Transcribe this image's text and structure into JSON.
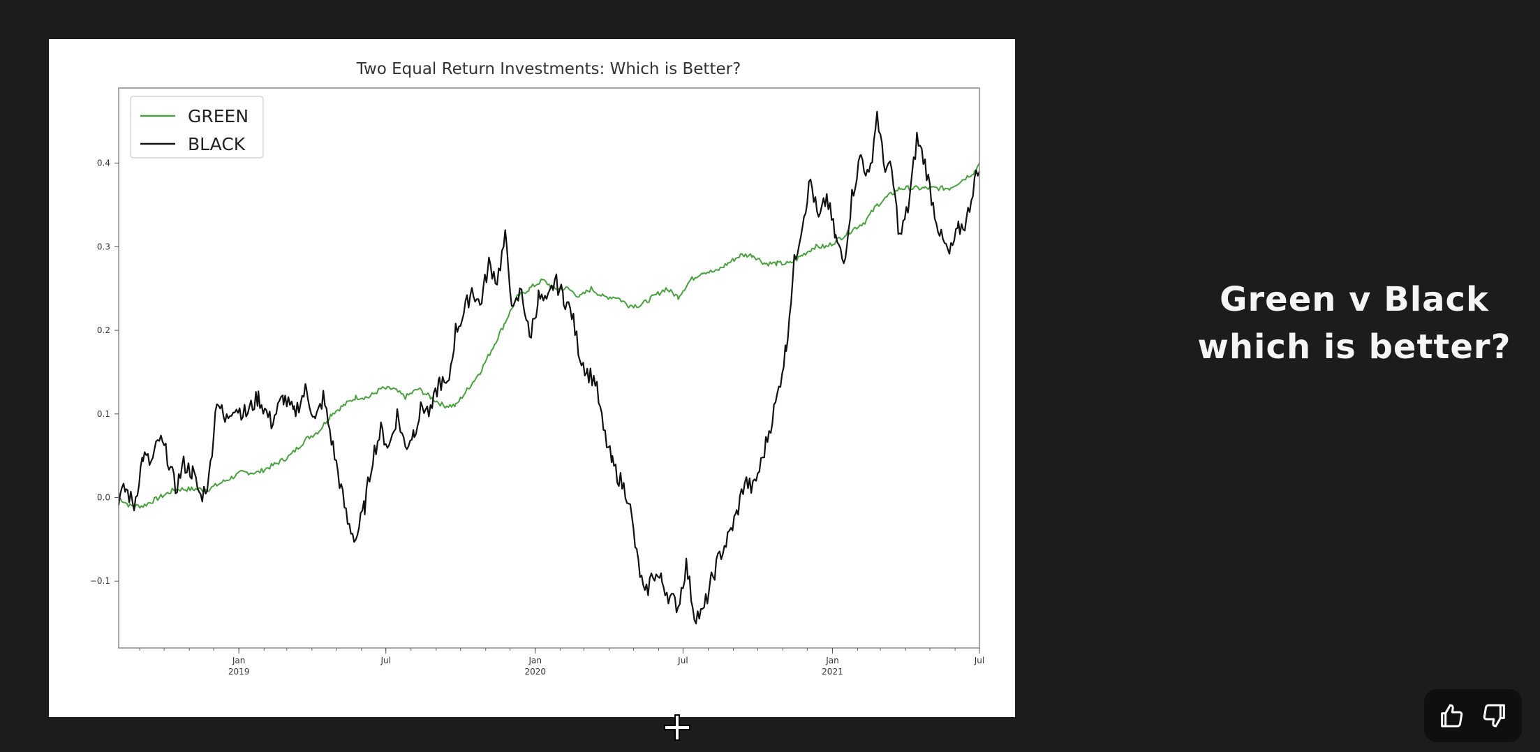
{
  "caption": {
    "line1": "Green v Black",
    "line2": "which is better?"
  },
  "feedback": {
    "thumbs_up_icon": "thumbs-up-icon",
    "thumbs_down_icon": "thumbs-down-icon"
  },
  "cursor": {
    "icon": "crosshair-move-icon"
  },
  "colors": {
    "background": "#1c1c1c",
    "green_series": "#4aa040",
    "black_series": "#111111"
  },
  "chart_data": {
    "type": "line",
    "title": "Two Equal Return Investments: Which is Better?",
    "xlabel": "",
    "ylabel": "",
    "ylim": [
      -0.18,
      0.49
    ],
    "xlim": [
      "2018-08-06",
      "2021-07-01"
    ],
    "yticks": [
      {
        "value": 0.4,
        "label": "0.4"
      },
      {
        "value": 0.3,
        "label": "0.3"
      },
      {
        "value": 0.2,
        "label": "0.2"
      },
      {
        "value": 0.1,
        "label": "0.1"
      },
      {
        "value": 0.0,
        "label": "0.0"
      },
      {
        "value": -0.1,
        "label": "−0.1"
      }
    ],
    "xticks": [
      {
        "date": "2019-01-01",
        "label": "Jan",
        "sub": "2019"
      },
      {
        "date": "2019-07-01",
        "label": "Jul",
        "sub": ""
      },
      {
        "date": "2020-01-01",
        "label": "Jan",
        "sub": "2020"
      },
      {
        "date": "2020-07-01",
        "label": "Jul",
        "sub": ""
      },
      {
        "date": "2021-01-01",
        "label": "Jan",
        "sub": "2021"
      },
      {
        "date": "2021-07-01",
        "label": "Jul",
        "sub": ""
      }
    ],
    "legend_position": "top-left",
    "grid": false,
    "series": [
      {
        "name": "GREEN",
        "color": "#4aa040",
        "points": [
          [
            "2018-08-06",
            0.0
          ],
          [
            "2018-08-20",
            -0.01
          ],
          [
            "2018-09-05",
            -0.01
          ],
          [
            "2018-09-25",
            0.0
          ],
          [
            "2018-10-15",
            0.01
          ],
          [
            "2018-11-05",
            0.01
          ],
          [
            "2018-11-25",
            0.01
          ],
          [
            "2018-12-15",
            0.02
          ],
          [
            "2019-01-05",
            0.03
          ],
          [
            "2019-01-25",
            0.03
          ],
          [
            "2019-02-15",
            0.04
          ],
          [
            "2019-03-05",
            0.05
          ],
          [
            "2019-03-25",
            0.07
          ],
          [
            "2019-04-10",
            0.08
          ],
          [
            "2019-04-25",
            0.1
          ],
          [
            "2019-05-10",
            0.11
          ],
          [
            "2019-05-25",
            0.12
          ],
          [
            "2019-06-10",
            0.12
          ],
          [
            "2019-06-25",
            0.13
          ],
          [
            "2019-07-10",
            0.13
          ],
          [
            "2019-07-25",
            0.12
          ],
          [
            "2019-08-10",
            0.13
          ],
          [
            "2019-08-25",
            0.12
          ],
          [
            "2019-09-10",
            0.11
          ],
          [
            "2019-09-25",
            0.11
          ],
          [
            "2019-10-10",
            0.13
          ],
          [
            "2019-10-25",
            0.15
          ],
          [
            "2019-11-10",
            0.18
          ],
          [
            "2019-11-25",
            0.21
          ],
          [
            "2019-12-10",
            0.24
          ],
          [
            "2019-12-25",
            0.25
          ],
          [
            "2020-01-10",
            0.26
          ],
          [
            "2020-01-25",
            0.25
          ],
          [
            "2020-02-10",
            0.25
          ],
          [
            "2020-02-25",
            0.24
          ],
          [
            "2020-03-10",
            0.25
          ],
          [
            "2020-03-25",
            0.24
          ],
          [
            "2020-04-10",
            0.24
          ],
          [
            "2020-04-25",
            0.23
          ],
          [
            "2020-05-10",
            0.23
          ],
          [
            "2020-05-25",
            0.24
          ],
          [
            "2020-06-10",
            0.25
          ],
          [
            "2020-06-25",
            0.24
          ],
          [
            "2020-07-10",
            0.26
          ],
          [
            "2020-07-25",
            0.27
          ],
          [
            "2020-08-10",
            0.27
          ],
          [
            "2020-08-25",
            0.28
          ],
          [
            "2020-09-10",
            0.29
          ],
          [
            "2020-09-25",
            0.29
          ],
          [
            "2020-10-10",
            0.28
          ],
          [
            "2020-10-25",
            0.28
          ],
          [
            "2020-11-10",
            0.28
          ],
          [
            "2020-11-25",
            0.29
          ],
          [
            "2020-12-10",
            0.3
          ],
          [
            "2020-12-25",
            0.3
          ],
          [
            "2021-01-10",
            0.31
          ],
          [
            "2021-01-25",
            0.32
          ],
          [
            "2021-02-10",
            0.33
          ],
          [
            "2021-02-25",
            0.35
          ],
          [
            "2021-03-10",
            0.36
          ],
          [
            "2021-03-25",
            0.37
          ],
          [
            "2021-04-10",
            0.37
          ],
          [
            "2021-04-25",
            0.37
          ],
          [
            "2021-05-10",
            0.37
          ],
          [
            "2021-05-25",
            0.37
          ],
          [
            "2021-06-10",
            0.38
          ],
          [
            "2021-06-25",
            0.39
          ],
          [
            "2021-07-01",
            0.4
          ]
        ]
      },
      {
        "name": "BLACK",
        "color": "#111111",
        "points": [
          [
            "2018-08-06",
            0.0
          ],
          [
            "2018-08-15",
            0.01
          ],
          [
            "2018-08-25",
            -0.01
          ],
          [
            "2018-09-05",
            0.05
          ],
          [
            "2018-09-15",
            0.04
          ],
          [
            "2018-09-25",
            0.07
          ],
          [
            "2018-10-05",
            0.05
          ],
          [
            "2018-10-15",
            0.01
          ],
          [
            "2018-10-25",
            0.04
          ],
          [
            "2018-11-05",
            0.03
          ],
          [
            "2018-11-15",
            0.0
          ],
          [
            "2018-11-25",
            0.02
          ],
          [
            "2018-12-05",
            0.12
          ],
          [
            "2018-12-15",
            0.09
          ],
          [
            "2018-12-25",
            0.11
          ],
          [
            "2019-01-10",
            0.1
          ],
          [
            "2019-01-25",
            0.12
          ],
          [
            "2019-02-10",
            0.09
          ],
          [
            "2019-02-25",
            0.12
          ],
          [
            "2019-03-10",
            0.1
          ],
          [
            "2019-03-25",
            0.13
          ],
          [
            "2019-04-05",
            0.09
          ],
          [
            "2019-04-15",
            0.12
          ],
          [
            "2019-04-25",
            0.07
          ],
          [
            "2019-05-05",
            0.02
          ],
          [
            "2019-05-15",
            -0.03
          ],
          [
            "2019-05-25",
            -0.05
          ],
          [
            "2019-06-05",
            -0.01
          ],
          [
            "2019-06-15",
            0.05
          ],
          [
            "2019-06-25",
            0.08
          ],
          [
            "2019-07-05",
            0.06
          ],
          [
            "2019-07-15",
            0.1
          ],
          [
            "2019-07-25",
            0.06
          ],
          [
            "2019-08-05",
            0.08
          ],
          [
            "2019-08-15",
            0.11
          ],
          [
            "2019-08-25",
            0.1
          ],
          [
            "2019-09-05",
            0.14
          ],
          [
            "2019-09-15",
            0.13
          ],
          [
            "2019-09-25",
            0.2
          ],
          [
            "2019-10-05",
            0.22
          ],
          [
            "2019-10-15",
            0.25
          ],
          [
            "2019-10-25",
            0.23
          ],
          [
            "2019-11-05",
            0.28
          ],
          [
            "2019-11-15",
            0.26
          ],
          [
            "2019-11-25",
            0.31
          ],
          [
            "2019-12-05",
            0.22
          ],
          [
            "2019-12-15",
            0.25
          ],
          [
            "2019-12-25",
            0.19
          ],
          [
            "2020-01-05",
            0.24
          ],
          [
            "2020-01-15",
            0.23
          ],
          [
            "2020-01-25",
            0.26
          ],
          [
            "2020-02-05",
            0.24
          ],
          [
            "2020-02-15",
            0.22
          ],
          [
            "2020-02-25",
            0.17
          ],
          [
            "2020-03-05",
            0.15
          ],
          [
            "2020-03-15",
            0.14
          ],
          [
            "2020-03-25",
            0.08
          ],
          [
            "2020-04-05",
            0.04
          ],
          [
            "2020-04-15",
            0.02
          ],
          [
            "2020-04-25",
            0.0
          ],
          [
            "2020-05-05",
            -0.07
          ],
          [
            "2020-05-15",
            -0.12
          ],
          [
            "2020-05-25",
            -0.09
          ],
          [
            "2020-06-05",
            -0.1
          ],
          [
            "2020-06-15",
            -0.12
          ],
          [
            "2020-06-25",
            -0.13
          ],
          [
            "2020-07-05",
            -0.08
          ],
          [
            "2020-07-15",
            -0.14
          ],
          [
            "2020-07-25",
            -0.14
          ],
          [
            "2020-08-05",
            -0.1
          ],
          [
            "2020-08-15",
            -0.07
          ],
          [
            "2020-08-25",
            -0.05
          ],
          [
            "2020-09-05",
            -0.02
          ],
          [
            "2020-09-15",
            0.02
          ],
          [
            "2020-09-25",
            0.01
          ],
          [
            "2020-10-05",
            0.04
          ],
          [
            "2020-10-15",
            0.08
          ],
          [
            "2020-10-25",
            0.12
          ],
          [
            "2020-11-05",
            0.18
          ],
          [
            "2020-11-15",
            0.28
          ],
          [
            "2020-11-25",
            0.33
          ],
          [
            "2020-12-05",
            0.38
          ],
          [
            "2020-12-15",
            0.33
          ],
          [
            "2020-12-25",
            0.36
          ],
          [
            "2021-01-05",
            0.31
          ],
          [
            "2021-01-15",
            0.28
          ],
          [
            "2021-01-25",
            0.36
          ],
          [
            "2021-02-05",
            0.41
          ],
          [
            "2021-02-15",
            0.38
          ],
          [
            "2021-02-25",
            0.46
          ],
          [
            "2021-03-05",
            0.4
          ],
          [
            "2021-03-15",
            0.39
          ],
          [
            "2021-03-25",
            0.31
          ],
          [
            "2021-04-05",
            0.35
          ],
          [
            "2021-04-15",
            0.43
          ],
          [
            "2021-04-25",
            0.4
          ],
          [
            "2021-05-05",
            0.35
          ],
          [
            "2021-05-15",
            0.31
          ],
          [
            "2021-05-25",
            0.29
          ],
          [
            "2021-06-05",
            0.32
          ],
          [
            "2021-06-15",
            0.33
          ],
          [
            "2021-06-25",
            0.38
          ],
          [
            "2021-07-01",
            0.39
          ]
        ]
      }
    ]
  }
}
